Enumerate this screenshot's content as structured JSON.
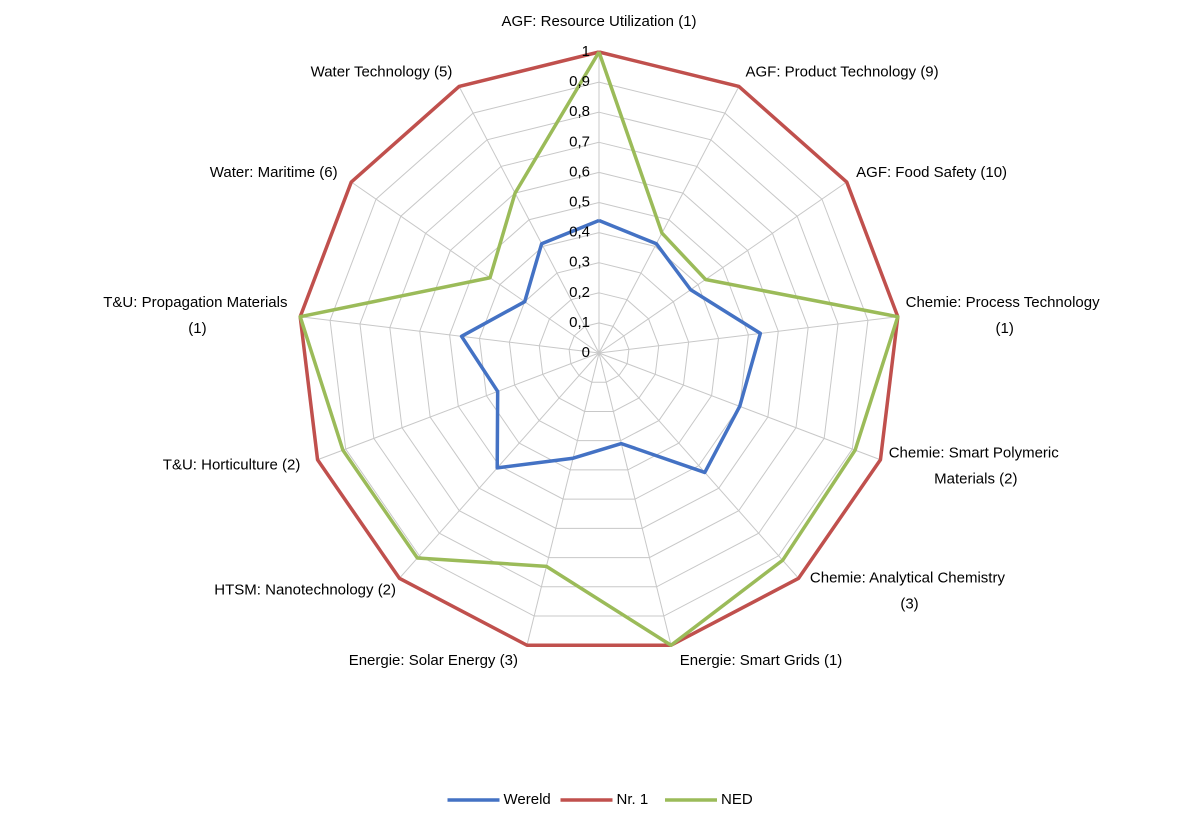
{
  "chart_data": {
    "type": "radar",
    "categories": [
      "AGF: Resource Utilization (1)",
      "AGF: Product Technology (9)",
      "AGF: Food Safety (10)",
      "Chemie: Process Technology (1)",
      "Chemie: Smart Polymeric Materials (2)",
      "Chemie: Analytical Chemistry (3)",
      "Energie: Smart Grids (1)",
      "Energie: Solar Energy (3)",
      "HTSM: Nanotechnology (2)",
      "T&U: Horticulture (2)",
      "T&U: Propagation Materials (1)",
      "Water: Maritime (6)",
      "Water Technology (5)"
    ],
    "series": [
      {
        "name": "Wereld",
        "color": "#4472c4",
        "values": [
          0.44,
          0.41,
          0.37,
          0.54,
          0.5,
          0.53,
          0.31,
          0.36,
          0.51,
          0.36,
          0.46,
          0.3,
          0.41
        ]
      },
      {
        "name": "Nr. 1",
        "color": "#c0504d",
        "values": [
          1,
          1,
          1,
          1,
          1,
          1,
          1,
          1,
          1,
          1,
          1,
          1,
          1
        ]
      },
      {
        "name": "NED",
        "color": "#9bbb59",
        "values": [
          1,
          0.45,
          0.43,
          1,
          0.91,
          0.92,
          1,
          0.73,
          0.91,
          0.91,
          1,
          0.44,
          0.6
        ]
      }
    ],
    "ylim": [
      0,
      1
    ],
    "yticks": [
      0,
      {
        "value": 0.1,
        "label": "0,1"
      },
      {
        "value": 0.2,
        "label": "0,2"
      },
      {
        "value": 0.3,
        "label": "0,3"
      },
      {
        "value": 0.4,
        "label": "0,4"
      },
      {
        "value": 0.5,
        "label": "0,5"
      },
      {
        "value": 0.6,
        "label": "0,6"
      },
      {
        "value": 0.7,
        "label": "0,7"
      },
      {
        "value": 0.8,
        "label": "0,8"
      },
      {
        "value": 0.9,
        "label": "0,9"
      },
      1
    ],
    "grid": true,
    "legend": "bottom"
  }
}
